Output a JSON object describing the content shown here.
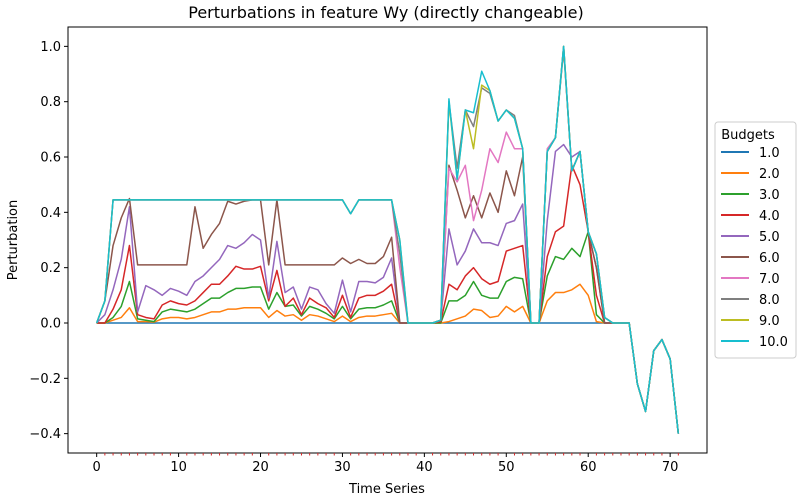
{
  "chart_data": {
    "type": "line",
    "title": "Perturbations in feature Wy (directly changeable)",
    "xlabel": "Time Series",
    "ylabel": "Perturbation",
    "xlim": [
      -3.5,
      74.5
    ],
    "ylim": [
      -0.47,
      1.07
    ],
    "x_ticks": [
      0,
      10,
      20,
      30,
      40,
      50,
      60,
      70
    ],
    "y_ticks": [
      -0.4,
      -0.2,
      0.0,
      0.2,
      0.4,
      0.6,
      0.8,
      1.0
    ],
    "x_tick_labels": [
      "0",
      "10",
      "20",
      "30",
      "40",
      "50",
      "60",
      "70"
    ],
    "y_tick_labels": [
      "−0.4",
      "−0.2",
      "0.0",
      "0.2",
      "0.4",
      "0.6",
      "0.8",
      "1.0"
    ],
    "grid": false,
    "legend": {
      "title": "Budgets",
      "position": "right"
    },
    "x": [
      0,
      1,
      2,
      3,
      4,
      5,
      6,
      7,
      8,
      9,
      10,
      11,
      12,
      13,
      14,
      15,
      16,
      17,
      18,
      19,
      20,
      21,
      22,
      23,
      24,
      25,
      26,
      27,
      28,
      29,
      30,
      31,
      32,
      33,
      34,
      35,
      36,
      37,
      38,
      39,
      40,
      41,
      42,
      43,
      44,
      45,
      46,
      47,
      48,
      49,
      50,
      51,
      52,
      53,
      54,
      55,
      56,
      57,
      58,
      59,
      60,
      61,
      62,
      63,
      64,
      65,
      66,
      67,
      68,
      69,
      70,
      71
    ],
    "series": [
      {
        "name": "1.0",
        "color": "#1f77b4",
        "values": [
          0,
          0,
          0,
          0,
          0,
          0,
          0,
          0,
          0,
          0,
          0,
          0,
          0,
          0,
          0,
          0,
          0,
          0,
          0,
          0,
          0,
          0,
          0,
          0,
          0,
          0,
          0,
          0,
          0,
          0,
          0,
          0,
          0,
          0,
          0,
          0,
          0,
          0,
          0,
          0,
          0,
          0,
          0,
          0,
          0,
          0,
          0,
          0,
          0,
          0,
          0,
          0,
          0,
          0,
          0,
          0,
          0,
          0,
          0,
          0,
          0,
          0,
          0,
          0,
          0,
          0,
          -0.22,
          -0.32,
          -0.1,
          -0.06,
          -0.13,
          -0.4
        ]
      },
      {
        "name": "2.0",
        "color": "#ff7f0e",
        "values": [
          0,
          0,
          0.01,
          0.02,
          0.055,
          0.005,
          0.005,
          0.003,
          0.015,
          0.02,
          0.02,
          0.015,
          0.02,
          0.03,
          0.04,
          0.04,
          0.05,
          0.05,
          0.055,
          0.055,
          0.055,
          0.02,
          0.045,
          0.025,
          0.03,
          0.01,
          0.03,
          0.025,
          0.015,
          0.005,
          0.025,
          0.005,
          0.02,
          0.025,
          0.025,
          0.03,
          0.035,
          0,
          0,
          0,
          0,
          0,
          0,
          0.005,
          0.015,
          0.025,
          0.05,
          0.045,
          0.02,
          0.025,
          0.06,
          0.04,
          0.06,
          0,
          0,
          0.08,
          0.11,
          0.11,
          0.12,
          0.14,
          0.1,
          0.005,
          0,
          0,
          0,
          0,
          -0.22,
          -0.32,
          -0.1,
          -0.06,
          -0.13,
          -0.4
        ]
      },
      {
        "name": "3.0",
        "color": "#2ca02c",
        "values": [
          0,
          0,
          0.02,
          0.06,
          0.15,
          0.015,
          0.01,
          0.005,
          0.04,
          0.05,
          0.045,
          0.04,
          0.05,
          0.07,
          0.09,
          0.09,
          0.11,
          0.125,
          0.125,
          0.13,
          0.13,
          0.05,
          0.11,
          0.06,
          0.065,
          0.025,
          0.06,
          0.05,
          0.035,
          0.015,
          0.06,
          0.015,
          0.05,
          0.055,
          0.055,
          0.065,
          0.08,
          0,
          0,
          0,
          0,
          0,
          0,
          0.08,
          0.08,
          0.1,
          0.15,
          0.1,
          0.09,
          0.09,
          0.15,
          0.165,
          0.16,
          0,
          0,
          0.17,
          0.24,
          0.23,
          0.27,
          0.24,
          0.33,
          0.03,
          0,
          0,
          0,
          0,
          -0.22,
          -0.32,
          -0.1,
          -0.06,
          -0.13,
          -0.4
        ]
      },
      {
        "name": "4.0",
        "color": "#d62728",
        "values": [
          0,
          0,
          0.05,
          0.12,
          0.28,
          0.03,
          0.02,
          0.015,
          0.065,
          0.08,
          0.07,
          0.065,
          0.08,
          0.11,
          0.14,
          0.14,
          0.17,
          0.205,
          0.195,
          0.195,
          0.205,
          0.08,
          0.19,
          0.06,
          0.09,
          0.03,
          0.09,
          0.07,
          0.055,
          0.02,
          0.1,
          0.02,
          0.09,
          0.1,
          0.1,
          0.115,
          0.14,
          0,
          0,
          0,
          0,
          0,
          0.005,
          0.14,
          0.12,
          0.17,
          0.2,
          0.16,
          0.14,
          0.15,
          0.26,
          0.27,
          0.28,
          0,
          0,
          0.24,
          0.33,
          0.35,
          0.57,
          0.5,
          0.33,
          0.1,
          0,
          0,
          0,
          0,
          -0.22,
          -0.32,
          -0.1,
          -0.06,
          -0.13,
          -0.4
        ]
      },
      {
        "name": "5.0",
        "color": "#9467bd",
        "values": [
          0,
          0.03,
          0.12,
          0.23,
          0.42,
          0.04,
          0.135,
          0.12,
          0.1,
          0.125,
          0.115,
          0.1,
          0.15,
          0.17,
          0.2,
          0.23,
          0.28,
          0.27,
          0.29,
          0.32,
          0.3,
          0.09,
          0.295,
          0.11,
          0.13,
          0.05,
          0.13,
          0.12,
          0.07,
          0.035,
          0.155,
          0.04,
          0.15,
          0.15,
          0.145,
          0.165,
          0.235,
          0,
          0,
          0,
          0,
          0,
          0.01,
          0.34,
          0.21,
          0.26,
          0.34,
          0.29,
          0.29,
          0.28,
          0.36,
          0.37,
          0.43,
          0,
          0,
          0.37,
          0.62,
          0.645,
          0.6,
          0.62,
          0.33,
          0.2,
          0,
          0,
          0,
          0,
          -0.22,
          -0.32,
          -0.1,
          -0.06,
          -0.13,
          -0.4
        ]
      },
      {
        "name": "6.0",
        "color": "#8c564b",
        "values": [
          0,
          0.08,
          0.28,
          0.38,
          0.45,
          0.21,
          0.21,
          0.21,
          0.21,
          0.21,
          0.21,
          0.21,
          0.42,
          0.27,
          0.32,
          0.36,
          0.44,
          0.43,
          0.44,
          0.445,
          0.445,
          0.21,
          0.445,
          0.21,
          0.21,
          0.21,
          0.21,
          0.21,
          0.21,
          0.21,
          0.235,
          0.215,
          0.23,
          0.215,
          0.215,
          0.24,
          0.31,
          0,
          0,
          0,
          0,
          0,
          0.01,
          0.57,
          0.48,
          0.38,
          0.46,
          0.38,
          0.47,
          0.4,
          0.55,
          0.46,
          0.6,
          0,
          0,
          0.62,
          0.67,
          0.99,
          0.55,
          0.62,
          0.33,
          0.2,
          0,
          0,
          0,
          0,
          -0.22,
          -0.32,
          -0.1,
          -0.06,
          -0.13,
          -0.4
        ]
      },
      {
        "name": "7.0",
        "color": "#e377c2",
        "values": [
          0,
          0.08,
          0.445,
          0.445,
          0.445,
          0.445,
          0.445,
          0.445,
          0.445,
          0.445,
          0.445,
          0.445,
          0.445,
          0.445,
          0.445,
          0.445,
          0.445,
          0.445,
          0.445,
          0.445,
          0.445,
          0.445,
          0.445,
          0.445,
          0.445,
          0.445,
          0.445,
          0.445,
          0.445,
          0.445,
          0.445,
          0.395,
          0.445,
          0.445,
          0.445,
          0.445,
          0.445,
          0.2,
          0,
          0,
          0,
          0,
          0.01,
          0.56,
          0.51,
          0.57,
          0.37,
          0.48,
          0.63,
          0.58,
          0.69,
          0.63,
          0.63,
          0,
          0,
          0.63,
          0.67,
          1.0,
          0.55,
          0.62,
          0.33,
          0.25,
          0.02,
          0,
          0,
          0,
          -0.22,
          -0.32,
          -0.1,
          -0.06,
          -0.13,
          -0.4
        ]
      },
      {
        "name": "8.0",
        "color": "#7f7f7f",
        "values": [
          0,
          0.08,
          0.445,
          0.445,
          0.445,
          0.445,
          0.445,
          0.445,
          0.445,
          0.445,
          0.445,
          0.445,
          0.445,
          0.445,
          0.445,
          0.445,
          0.445,
          0.445,
          0.445,
          0.445,
          0.445,
          0.445,
          0.445,
          0.445,
          0.445,
          0.445,
          0.445,
          0.445,
          0.445,
          0.445,
          0.445,
          0.395,
          0.445,
          0.445,
          0.445,
          0.445,
          0.445,
          0.25,
          0,
          0,
          0,
          0,
          0.01,
          0.8,
          0.56,
          0.77,
          0.71,
          0.85,
          0.83,
          0.73,
          0.77,
          0.75,
          0.63,
          0,
          0,
          0.62,
          0.67,
          1.0,
          0.55,
          0.62,
          0.33,
          0.25,
          0.02,
          0,
          0,
          0,
          -0.22,
          -0.32,
          -0.1,
          -0.06,
          -0.13,
          -0.4
        ]
      },
      {
        "name": "9.0",
        "color": "#bcbd22",
        "values": [
          0,
          0.08,
          0.445,
          0.445,
          0.445,
          0.445,
          0.445,
          0.445,
          0.445,
          0.445,
          0.445,
          0.445,
          0.445,
          0.445,
          0.445,
          0.445,
          0.445,
          0.445,
          0.445,
          0.445,
          0.445,
          0.445,
          0.445,
          0.445,
          0.445,
          0.445,
          0.445,
          0.445,
          0.445,
          0.445,
          0.445,
          0.395,
          0.445,
          0.445,
          0.445,
          0.445,
          0.445,
          0.3,
          0,
          0,
          0,
          0,
          0.01,
          0.8,
          0.52,
          0.77,
          0.63,
          0.86,
          0.84,
          0.73,
          0.77,
          0.74,
          0.63,
          0,
          0,
          0.62,
          0.67,
          1.0,
          0.55,
          0.62,
          0.33,
          0.25,
          0.02,
          0,
          0,
          0,
          -0.22,
          -0.32,
          -0.1,
          -0.06,
          -0.13,
          -0.4
        ]
      },
      {
        "name": "10.0",
        "color": "#17becf",
        "values": [
          0,
          0.08,
          0.445,
          0.445,
          0.445,
          0.445,
          0.445,
          0.445,
          0.445,
          0.445,
          0.445,
          0.445,
          0.445,
          0.445,
          0.445,
          0.445,
          0.445,
          0.445,
          0.445,
          0.445,
          0.445,
          0.445,
          0.445,
          0.445,
          0.445,
          0.445,
          0.445,
          0.445,
          0.445,
          0.445,
          0.445,
          0.395,
          0.445,
          0.445,
          0.445,
          0.445,
          0.445,
          0.3,
          0,
          0,
          0,
          0,
          0.01,
          0.81,
          0.52,
          0.77,
          0.76,
          0.91,
          0.84,
          0.73,
          0.77,
          0.74,
          0.63,
          0,
          0,
          0.62,
          0.67,
          1.0,
          0.55,
          0.62,
          0.33,
          0.25,
          0.02,
          0,
          0,
          0,
          -0.22,
          -0.32,
          -0.1,
          -0.06,
          -0.13,
          -0.4
        ]
      }
    ]
  }
}
